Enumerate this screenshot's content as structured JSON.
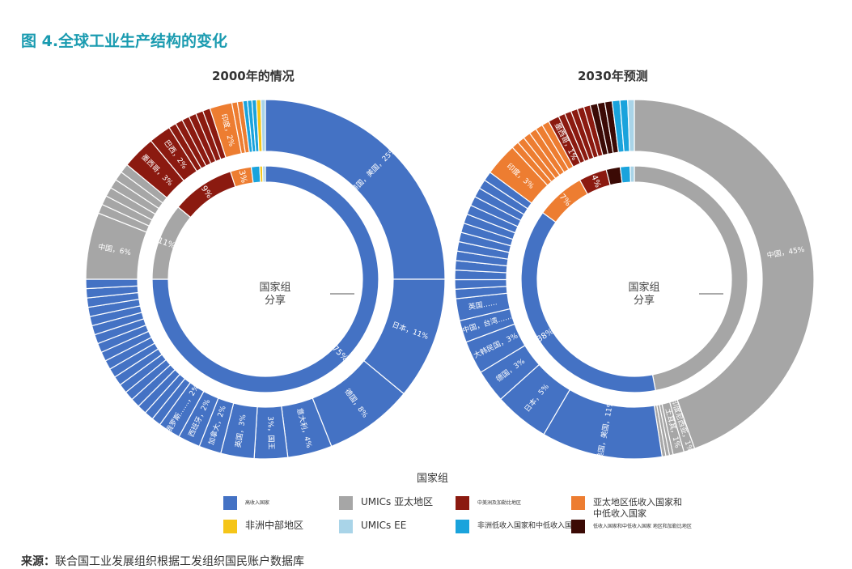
{
  "figure_title": "图 4.全球工业生产结构的变化",
  "legend": {
    "title": "国家组",
    "items": [
      {
        "key": "hi",
        "label": "高收入国家",
        "color": "#4472c4"
      },
      {
        "key": "umic",
        "label": "UMICs 亚太地区",
        "color": "#a6a6a6"
      },
      {
        "key": "latam",
        "label": "中美洲及加勒比地区",
        "color": "#8b1a10"
      },
      {
        "key": "lmic",
        "label": "亚太地区低收入国家和中低收入国家",
        "color": "#ed7d31"
      },
      {
        "key": "africa",
        "label": "非洲中部地区",
        "color": "#f5c518"
      },
      {
        "key": "umiceu",
        "label": "UMICs EE",
        "color": "#a9d4e8"
      },
      {
        "key": "afrlow",
        "label": "非洲低收入国家和中低收入国家",
        "color": "#1aa3dc"
      },
      {
        "key": "other",
        "label": "低收入国家和中低收入国家 地区和加勒比地区",
        "color": "#3b0a05"
      }
    ]
  },
  "source": {
    "label": "来源：",
    "text": "联合国工业发展组织根据工发组织国民账户数据库"
  },
  "chart_data": [
    {
      "type": "donut",
      "title": "2000年的情况",
      "center_label": [
        "国家组",
        "分享"
      ],
      "inner": [
        {
          "group": "hi",
          "value": 75,
          "label": "75%"
        },
        {
          "group": "umic",
          "value": 11,
          "label": "11%"
        },
        {
          "group": "latam",
          "value": 9,
          "label": "9%"
        },
        {
          "group": "lmic",
          "value": 3,
          "label": "3%"
        },
        {
          "group": "afrlow",
          "value": 1.2,
          "label": ""
        },
        {
          "group": "africa",
          "value": 0.4,
          "label": ""
        },
        {
          "group": "umiceu",
          "value": 0.4,
          "label": ""
        }
      ],
      "outer": [
        {
          "group": "hi",
          "value": 25,
          "label": "美国，美国，25%"
        },
        {
          "group": "hi",
          "value": 11,
          "label": "日本，11%"
        },
        {
          "group": "hi",
          "value": 8,
          "label": "德国，8%"
        },
        {
          "group": "hi",
          "value": 4,
          "label": "意大利，4%"
        },
        {
          "group": "hi",
          "value": 3,
          "label": "3%，国王"
        },
        {
          "group": "hi",
          "value": 3,
          "label": "英国，3%"
        },
        {
          "group": "hi",
          "value": 2,
          "label": "加拿大，2%"
        },
        {
          "group": "hi",
          "value": 2,
          "label": "西班牙，2%"
        },
        {
          "group": "hi",
          "value": 2,
          "label": "俄罗斯……，2%"
        },
        {
          "group": "hi",
          "value": 15,
          "label": "",
          "subdivisions": 18
        },
        {
          "group": "umic",
          "value": 6,
          "label": "中国，6%"
        },
        {
          "group": "umic",
          "value": 5,
          "label": "",
          "subdivisions": 6
        },
        {
          "group": "latam",
          "value": 3,
          "label": "墨西哥，3%"
        },
        {
          "group": "latam",
          "value": 2,
          "label": "巴西，2%"
        },
        {
          "group": "latam",
          "value": 4,
          "label": "",
          "subdivisions": 6
        },
        {
          "group": "lmic",
          "value": 2,
          "label": "印度，2%"
        },
        {
          "group": "lmic",
          "value": 1,
          "label": "",
          "subdivisions": 2
        },
        {
          "group": "afrlow",
          "value": 1.2,
          "label": "",
          "subdivisions": 3
        },
        {
          "group": "africa",
          "value": 0.4,
          "label": ""
        },
        {
          "group": "umiceu",
          "value": 0.4,
          "label": ""
        }
      ]
    },
    {
      "type": "donut",
      "title": "2030年预测",
      "center_label": [
        "国家组",
        "分享"
      ],
      "inner": [
        {
          "group": "umic",
          "value": 47,
          "label": ""
        },
        {
          "group": "hi",
          "value": 38,
          "label": "38%"
        },
        {
          "group": "lmic",
          "value": 7,
          "label": "7%"
        },
        {
          "group": "latam",
          "value": 4,
          "label": "4%"
        },
        {
          "group": "other",
          "value": 2,
          "label": ""
        },
        {
          "group": "afrlow",
          "value": 1.4,
          "label": ""
        },
        {
          "group": "umiceu",
          "value": 0.6,
          "label": ""
        }
      ],
      "outer": [
        {
          "group": "umic",
          "value": 45,
          "label": "中国，45%"
        },
        {
          "group": "umic",
          "value": 1,
          "label": "印度尼西亚，1%"
        },
        {
          "group": "umic",
          "value": 1,
          "label": "土耳其，1%"
        },
        {
          "group": "umic",
          "value": 1,
          "label": "",
          "subdivisions": 3
        },
        {
          "group": "hi",
          "value": 11,
          "label": "美国，美国，11%"
        },
        {
          "group": "hi",
          "value": 5,
          "label": "日本，5%"
        },
        {
          "group": "hi",
          "value": 3,
          "label": "德国，3%"
        },
        {
          "group": "hi",
          "value": 3,
          "label": "大韩民国，3%"
        },
        {
          "group": "hi",
          "value": 2,
          "label": "中国，台湾……"
        },
        {
          "group": "hi",
          "value": 2,
          "label": "英国……"
        },
        {
          "group": "hi",
          "value": 12,
          "label": "",
          "subdivisions": 14
        },
        {
          "group": "lmic",
          "value": 3,
          "label": "印度，3%"
        },
        {
          "group": "lmic",
          "value": 4,
          "label": "",
          "subdivisions": 6
        },
        {
          "group": "latam",
          "value": 1,
          "label": "墨西哥，1%"
        },
        {
          "group": "latam",
          "value": 3,
          "label": "",
          "subdivisions": 5
        },
        {
          "group": "other",
          "value": 2,
          "label": "",
          "subdivisions": 3
        },
        {
          "group": "afrlow",
          "value": 1.4,
          "label": "",
          "subdivisions": 2
        },
        {
          "group": "umiceu",
          "value": 0.6,
          "label": ""
        }
      ]
    }
  ]
}
